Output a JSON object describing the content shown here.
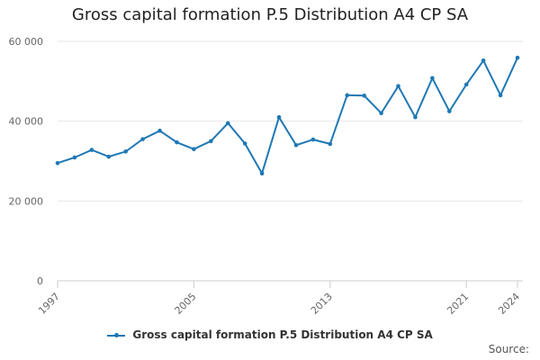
{
  "chart_data": {
    "type": "line",
    "title": "Gross capital formation P.5 Distribution A4 CP SA",
    "xlabel": "",
    "ylabel": "",
    "x_ticks": [
      "1997",
      "2005",
      "2013",
      "2021",
      "2024"
    ],
    "y_ticks": [
      "0",
      "20 000",
      "40 000",
      "60 000"
    ],
    "ylim": [
      0,
      60000
    ],
    "xlim": [
      1997,
      2024
    ],
    "grid": true,
    "legend_position": "bottom",
    "series": [
      {
        "name": "Gross capital formation P.5 Distribution A4 CP SA",
        "color": "#1f78b4",
        "x": [
          1997,
          1998,
          1999,
          2000,
          2001,
          2002,
          2003,
          2004,
          2005,
          2006,
          2007,
          2008,
          2009,
          2010,
          2011,
          2012,
          2013,
          2014,
          2015,
          2016,
          2017,
          2018,
          2019,
          2020,
          2021,
          2022,
          2023,
          2024
        ],
        "values": [
          29500,
          30900,
          32800,
          31100,
          32400,
          35500,
          37600,
          34700,
          33000,
          35000,
          39500,
          34400,
          26900,
          41000,
          34000,
          35400,
          34300,
          46500,
          46400,
          42000,
          48800,
          41000,
          50800,
          42500,
          49200,
          55200,
          46500,
          55900
        ]
      }
    ]
  },
  "legend_label": "Gross capital formation P.5 Distribution A4 CP SA",
  "source_label": "Source:"
}
